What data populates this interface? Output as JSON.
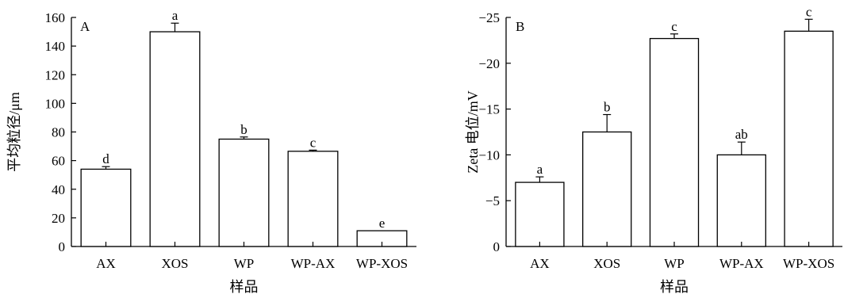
{
  "chart_data": [
    {
      "type": "bar",
      "panel_label": "A",
      "categories": [
        "AX",
        "XOS",
        "WP",
        "WP-AX",
        "WP-XOS"
      ],
      "values": [
        54,
        150,
        75,
        66.5,
        11
      ],
      "errors": [
        1.8,
        6,
        1.5,
        0.8,
        0
      ],
      "significance": [
        "d",
        "a",
        "b",
        "c",
        "e"
      ],
      "xlabel": "样品",
      "ylabel": "平均粒径/μm",
      "ylim": [
        0,
        160
      ],
      "yticks": [
        0,
        20,
        40,
        60,
        80,
        100,
        120,
        140,
        160
      ],
      "ytick_labels": [
        "0",
        "20",
        "40",
        "60",
        "80",
        "100",
        "120",
        "140",
        "160"
      ],
      "grid": false,
      "bar_color": "#ffffff",
      "edge_color": "#000000"
    },
    {
      "type": "bar",
      "panel_label": "B",
      "categories": [
        "AX",
        "XOS",
        "WP",
        "WP-AX",
        "WP-XOS"
      ],
      "values": [
        -7,
        -12.5,
        -22.7,
        -10,
        -23.5
      ],
      "errors": [
        0.6,
        1.9,
        0.5,
        1.4,
        1.3
      ],
      "significance": [
        "a",
        "b",
        "c",
        "ab",
        "c"
      ],
      "xlabel": "样品",
      "ylabel": "Zeta 电位/mV",
      "ylim": [
        0,
        -25
      ],
      "yaxis_inverted": true,
      "yticks": [
        0,
        -5,
        -10,
        -15,
        -20,
        -25
      ],
      "ytick_labels": [
        "0",
        "−5",
        "−10",
        "−15",
        "−20",
        "−25"
      ],
      "grid": false,
      "bar_color": "#ffffff",
      "edge_color": "#000000"
    }
  ]
}
